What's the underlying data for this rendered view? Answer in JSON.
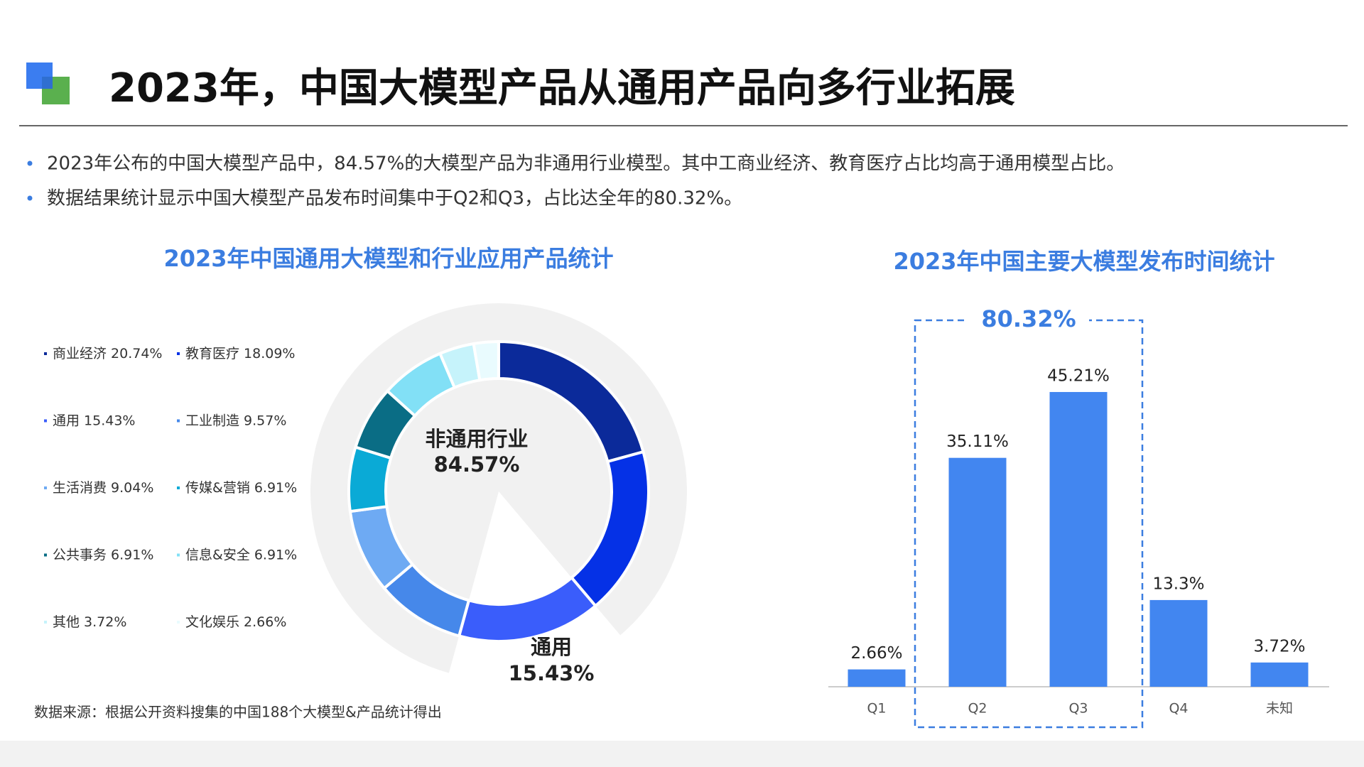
{
  "header": {
    "title": "2023年，中国大模型产品从通用产品向多行业拓展"
  },
  "bullets": [
    "2023年公布的中国大模型产品中，84.57%的大模型产品为非通用行业模型。其中工商业经济、教育医疗占比均高于通用模型占比。",
    "数据结果统计显示中国大模型产品发布时间集中于Q2和Q3，占比达全年的80.32%。"
  ],
  "source": "数据来源：根据公开资料搜集的中国188个大模型&产品统计得出",
  "chart_data": [
    {
      "type": "donut",
      "title": "2023年中国通用大模型和行业应用产品统计",
      "categories": [
        "商业经济",
        "教育医疗",
        "通用",
        "工业制造",
        "生活消费",
        "传媒&营销",
        "公共事务",
        "信息&安全",
        "其他",
        "文化娱乐"
      ],
      "values": [
        20.74,
        18.09,
        15.43,
        9.57,
        9.04,
        6.91,
        6.91,
        6.91,
        3.72,
        2.66
      ],
      "value_labels": [
        "20.74%",
        "18.09%",
        "15.43%",
        "9.57%",
        "9.04%",
        "6.91%",
        "6.91%",
        "6.91%",
        "3.72%",
        "2.66%"
      ],
      "colors": [
        "#0b2a9a",
        "#0531e6",
        "#3a5dfb",
        "#4688ea",
        "#6eaaf3",
        "#0aaad6",
        "#0a6d85",
        "#82e0f6",
        "#c6f3fb",
        "#e9fbfe"
      ],
      "center_label": {
        "text": "非通用行业",
        "value": 84.57,
        "value_label": "84.57%",
        "color": "#f1f1f1"
      },
      "callout": {
        "text": "通用",
        "value_label": "15.43%"
      }
    },
    {
      "type": "bar",
      "title": "2023年中国主要大模型发布时间统计",
      "categories": [
        "Q1",
        "Q2",
        "Q3",
        "Q4",
        "未知"
      ],
      "values": [
        2.66,
        35.11,
        45.21,
        13.3,
        3.72
      ],
      "value_labels": [
        "2.66%",
        "35.11%",
        "45.21%",
        "13.3%",
        "3.72%"
      ],
      "color": "#4286f0",
      "bracket_label": "80.32%"
    }
  ]
}
